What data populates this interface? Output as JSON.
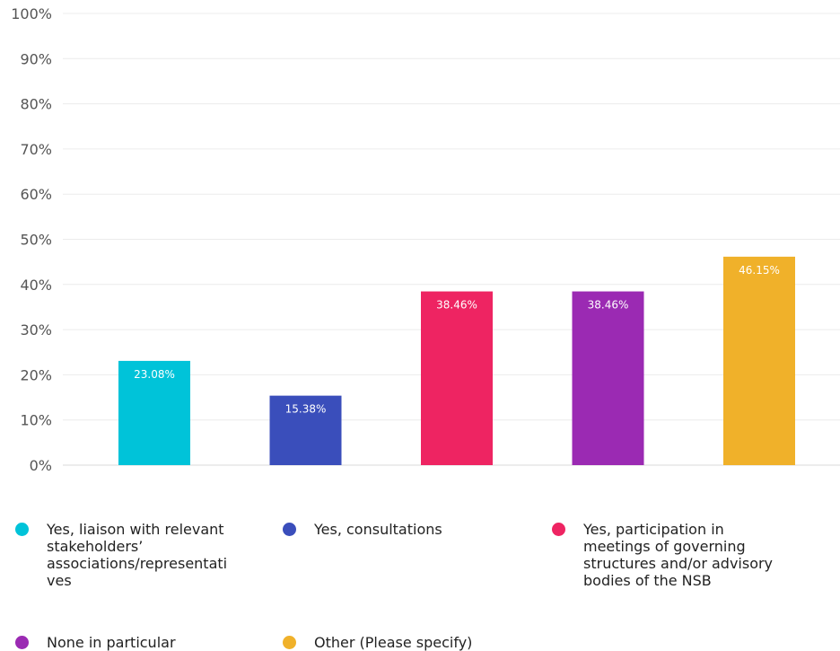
{
  "chart_data": {
    "type": "bar",
    "categories": [
      "Yes, liaison with relevant stakeholders’ associations/representatives",
      "Yes, consultations",
      "Yes, participation in meetings of governing structures and/or advisory bodies of the NSB",
      "None in particular",
      "Other (Please specify)"
    ],
    "values": [
      23.08,
      15.38,
      38.46,
      38.46,
      46.15
    ],
    "value_labels": [
      "23.08%",
      "15.38%",
      "38.46%",
      "38.46%",
      "46.15%"
    ],
    "colors": [
      "#00C3D9",
      "#3A4EBB",
      "#EE2462",
      "#9B2AB3",
      "#F0B12A"
    ],
    "ylim": [
      0,
      100
    ],
    "yticks": [
      "0%",
      "10%",
      "20%",
      "30%",
      "40%",
      "50%",
      "60%",
      "70%",
      "80%",
      "90%",
      "100%"
    ],
    "grid": true,
    "legend_position": "bottom"
  },
  "legend": {
    "items": [
      {
        "label": "Yes, liaison with relevant stakeholders’ associations/representati ves",
        "color": "#00C3D9"
      },
      {
        "label": "Yes, consultations",
        "color": "#3A4EBB"
      },
      {
        "label": "Yes, participation in meetings of governing structures and/or advisory bodies of the NSB",
        "color": "#EE2462"
      },
      {
        "label": "None in particular",
        "color": "#9B2AB3"
      },
      {
        "label": "Other (Please specify)",
        "color": "#F0B12A"
      }
    ]
  }
}
